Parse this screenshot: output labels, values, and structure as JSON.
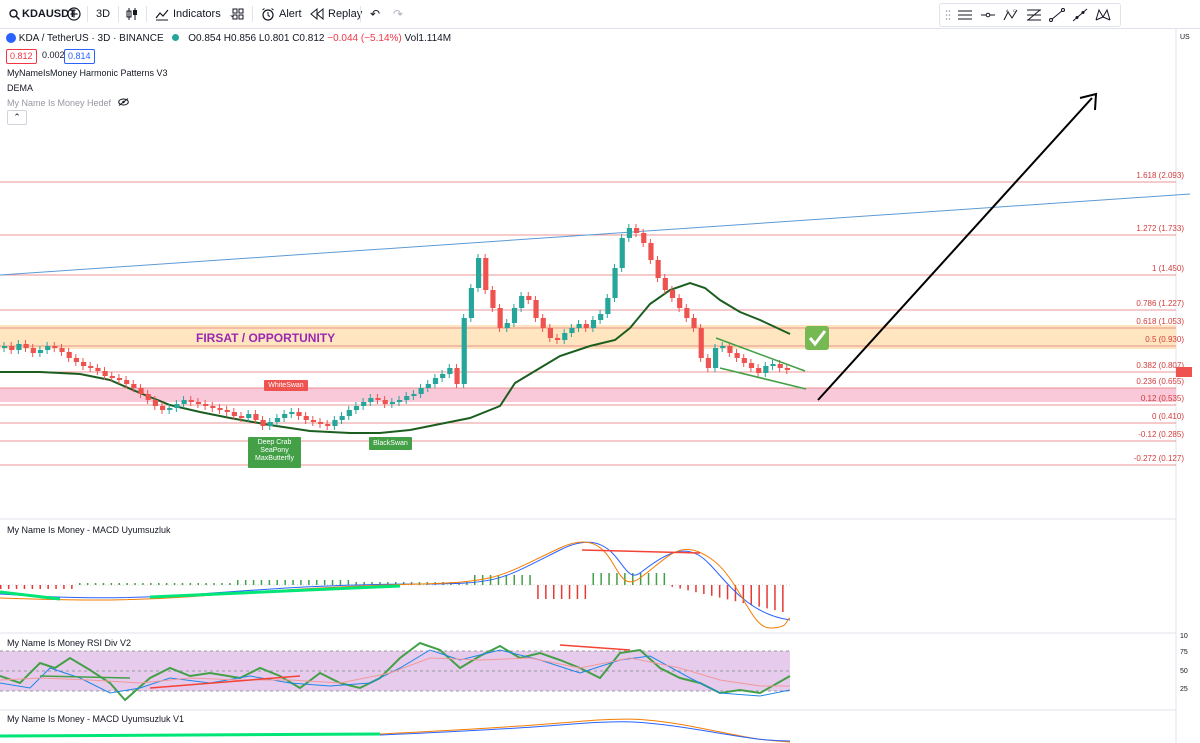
{
  "toolbar": {
    "symbol": "KDAUSDT",
    "interval": "3D",
    "indicators_label": "Indicators",
    "alert_label": "Alert",
    "replay_label": "Replay"
  },
  "legend": {
    "title": "KDA / TetherUS · 3D · BINANCE",
    "open": "O0.854",
    "high": "H0.856",
    "low": "L0.801",
    "close": "C0.812",
    "change": "−0.044 (−5.14%)",
    "volume": "Vol1.114M",
    "bid": "0.812",
    "spread": "0.002",
    "ask": "0.814",
    "indicators": [
      "MyNameIsMoney Harmonic Patterns V3",
      "DEMA",
      "My Name Is Money Hedef"
    ]
  },
  "chart_annotations": {
    "opportunity": "FIRSAT / OPPORTUNITY",
    "white_swan": "WhiteSwan",
    "black_swan": "BlackSwan",
    "deep_crab": [
      "Deep Crab",
      "SeaPony",
      "MaxButterfly"
    ]
  },
  "fib_levels": [
    {
      "label": "1.618 (2.093)"
    },
    {
      "label": "1.272 (1.733)"
    },
    {
      "label": "1 (1.450)"
    },
    {
      "label": "0.786 (1.227)"
    },
    {
      "label": "0.618 (1.053)"
    },
    {
      "label": "0.5 (0.930)"
    },
    {
      "label": "0.382 (0.807)"
    },
    {
      "label": "0.236 (0.655)"
    },
    {
      "label": "0.12 (0.535)"
    },
    {
      "label": "0 (0.410)"
    },
    {
      "label": "-0.12 (0.285)"
    },
    {
      "label": "-0.272 (0.127)"
    }
  ],
  "panes": {
    "macd": "My Name Is Money - MACD Uyumsuzluk",
    "rsi": "My Name Is Money RSI Div V2",
    "macd_v1": "My Name Is Money - MACD Uyumsuzluk V1"
  },
  "price_axis": {
    "currency": "US",
    "rsi_ticks": [
      "10",
      "75",
      "50",
      "25"
    ]
  },
  "colors": {
    "up": "#26a69a",
    "down": "#ef5350",
    "fib_line": "#e57373",
    "zone_orange": "#ffe0b2",
    "zone_pink": "#f8bbd0",
    "dema": "#1b5e20",
    "trendline": "#5b9bd5",
    "rsi_band": "#e1bee7",
    "opportunity_text": "#9c27b0"
  }
}
